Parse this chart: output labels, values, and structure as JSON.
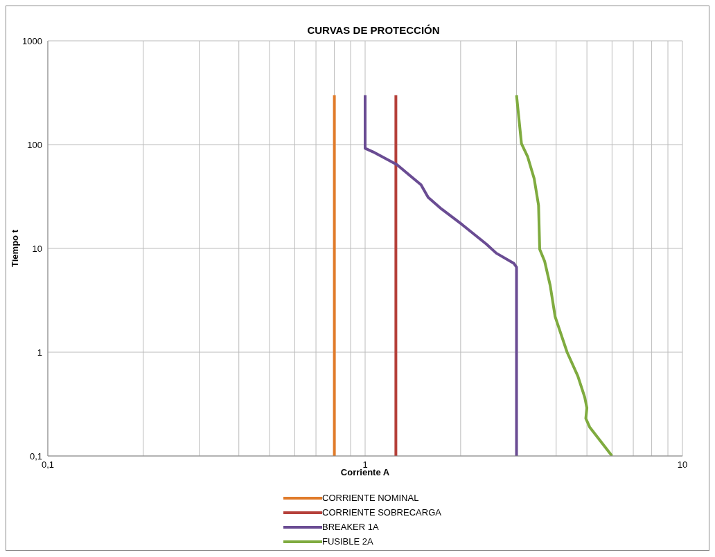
{
  "chart_data": {
    "type": "line",
    "title": "CURVAS  DE PROTECCIÓN",
    "xlabel": "Corriente A",
    "ylabel": "Tiempo t",
    "log": "xy",
    "grid": true,
    "legend": "bottom",
    "marker": "none",
    "line_style": "solid",
    "xlim": [
      0.1,
      10
    ],
    "ylim": [
      0.1,
      1000
    ],
    "xticks": [
      {
        "value": 0.1,
        "label": "0,1"
      },
      {
        "value": 0.2,
        "label": null
      },
      {
        "value": 0.3,
        "label": null
      },
      {
        "value": 0.4,
        "label": null
      },
      {
        "value": 0.5,
        "label": null
      },
      {
        "value": 0.6,
        "label": null
      },
      {
        "value": 0.7,
        "label": null
      },
      {
        "value": 0.8,
        "label": null
      },
      {
        "value": 0.9,
        "label": null
      },
      1,
      {
        "value": 2,
        "label": null
      },
      {
        "value": 3,
        "label": null
      },
      {
        "value": 4,
        "label": null
      },
      {
        "value": 5,
        "label": null
      },
      {
        "value": 6,
        "label": null
      },
      {
        "value": 7,
        "label": null
      },
      {
        "value": 8,
        "label": null
      },
      {
        "value": 9,
        "label": null
      },
      10
    ],
    "yticks": [
      {
        "value": 0.1,
        "label": "0,1"
      },
      1,
      10,
      100,
      1000
    ],
    "series": [
      {
        "name": "CORRIENTE NOMINAL",
        "color": "#e07b2a",
        "x": [
          0.8,
          0.8
        ],
        "values": [
          300,
          0.1
        ]
      },
      {
        "name": "CORRIENTE SOBRECARGA",
        "color": "#b5403a",
        "x": [
          1.25,
          1.25
        ],
        "values": [
          300,
          0.1
        ]
      },
      {
        "name": "BREAKER 1A",
        "color": "#6a4c93",
        "x": [
          1,
          1,
          1.06,
          1.26,
          1.5,
          1.58,
          1.74,
          2.02,
          2.41,
          2.59,
          2.94,
          3,
          3
        ],
        "values": [
          300,
          92,
          85,
          64,
          41,
          31,
          24,
          17,
          11,
          9,
          7.2,
          6.6,
          0.1
        ]
      },
      {
        "name": "FUSIBLE 2A",
        "color": "#7fab3f",
        "x": [
          3,
          3.11,
          3.25,
          3.41,
          3.52,
          3.55,
          3.68,
          3.83,
          3.97,
          4.33,
          4.68,
          4.92,
          5,
          4.96,
          5.1,
          6
        ],
        "values": [
          300,
          102,
          77,
          47,
          26,
          9.8,
          7.5,
          4.4,
          2.2,
          1,
          0.59,
          0.37,
          0.29,
          0.23,
          0.19,
          0.1
        ]
      }
    ]
  }
}
